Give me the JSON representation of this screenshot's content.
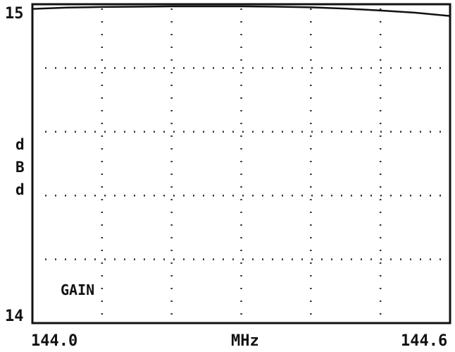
{
  "chart_data": {
    "type": "line",
    "title": "",
    "xlabel": "MHz",
    "ylabel": "dBd",
    "ylabel_chars": [
      "d",
      "B",
      "d"
    ],
    "xlim": [
      144.0,
      144.6
    ],
    "ylim": [
      14,
      15
    ],
    "x_ticks": [
      "144.0",
      "144.6"
    ],
    "y_ticks": [
      "14",
      "15"
    ],
    "x_grid_divisions": 6,
    "y_grid_divisions": 5,
    "grid": true,
    "grid_style": "dotted",
    "series": [
      {
        "name": "GAIN",
        "x": [
          144.0,
          144.05,
          144.1,
          144.15,
          144.2,
          144.25,
          144.3,
          144.35,
          144.4,
          144.45,
          144.5,
          144.55,
          144.6
        ],
        "y": [
          14.992,
          14.996,
          14.998,
          14.999,
          15.0,
          15.0,
          15.0,
          14.999,
          14.997,
          14.993,
          14.987,
          14.98,
          14.97
        ]
      }
    ],
    "colors": {
      "line": "#111111",
      "grid": "#333333",
      "frame": "#111111",
      "background": "#ffffff"
    }
  }
}
